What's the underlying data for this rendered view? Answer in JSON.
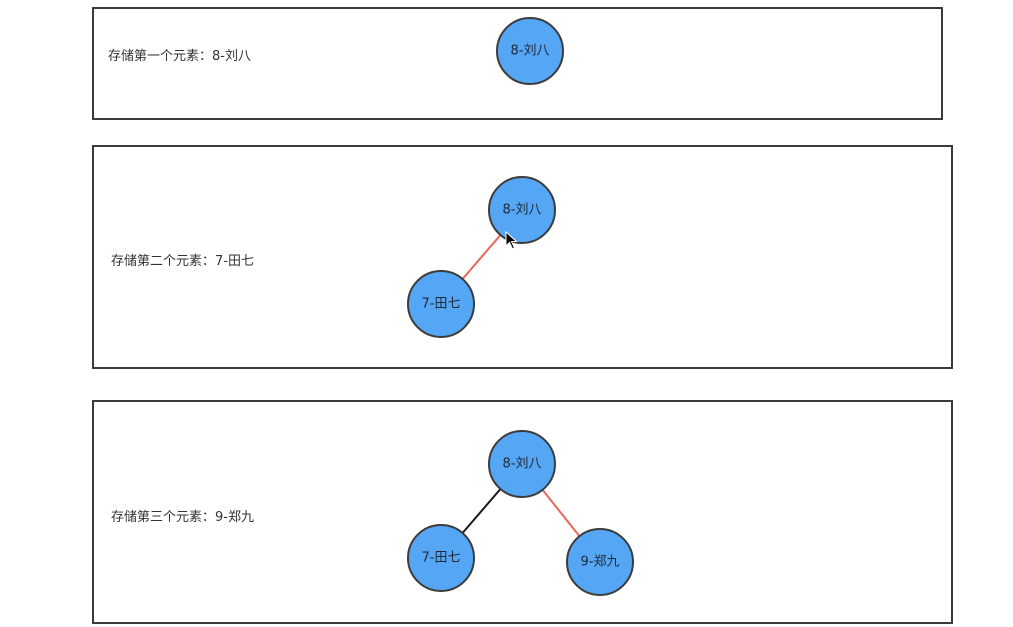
{
  "colors": {
    "node_fill": "#55A6F5",
    "edge_new": "#E8675A",
    "edge_old": "#1a1a1a"
  },
  "panels": [
    {
      "label": "存储第一个元素：8-刘八",
      "nodes": [
        {
          "id": "root",
          "label": "8-刘八"
        }
      ],
      "edges": []
    },
    {
      "label": "存储第二个元素：7-田七",
      "nodes": [
        {
          "id": "root",
          "label": "8-刘八"
        },
        {
          "id": "left",
          "label": "7-田七"
        }
      ],
      "edges": [
        {
          "from": "root",
          "to": "left",
          "status": "new"
        }
      ]
    },
    {
      "label": "存储第三个元素：9-郑九",
      "nodes": [
        {
          "id": "root",
          "label": "8-刘八"
        },
        {
          "id": "left",
          "label": "7-田七"
        },
        {
          "id": "right",
          "label": "9-郑九"
        }
      ],
      "edges": [
        {
          "from": "root",
          "to": "left",
          "status": "old"
        },
        {
          "from": "root",
          "to": "right",
          "status": "new"
        }
      ]
    }
  ]
}
